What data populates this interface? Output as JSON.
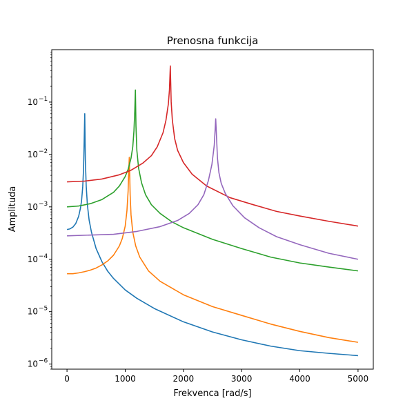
{
  "chart_data": {
    "type": "line",
    "title": "Prenosna funkcija",
    "xlabel": "Frekvenca [rad/s]",
    "ylabel": "Amplituda",
    "xlim": [
      -262,
      5262
    ],
    "ylim": [
      8e-07,
      1.0
    ],
    "yscale": "log",
    "grid": false,
    "xticks": [
      0,
      1000,
      2000,
      3000,
      4000,
      5000
    ],
    "xtick_labels": [
      "0",
      "1000",
      "2000",
      "3000",
      "4000",
      "5000"
    ],
    "yticks": [
      1e-06,
      1e-05,
      0.0001,
      0.001,
      0.01,
      0.1
    ],
    "ytick_base": "10",
    "ytick_exponents": [
      "−6",
      "−5",
      "−4",
      "−3",
      "−2",
      "−1"
    ],
    "series": [
      {
        "color": "#1f77b4",
        "x": [
          0,
          50,
          100,
          150,
          200,
          230,
          250,
          270,
          285,
          295,
          305,
          315,
          330,
          350,
          380,
          420,
          500,
          600,
          700,
          800,
          1000,
          1200,
          1500,
          2000,
          2500,
          3000,
          3500,
          4000,
          4500,
          5000
        ],
        "y": [
          0.00037,
          0.00038,
          0.00041,
          0.00048,
          0.00066,
          0.00093,
          0.0013,
          0.0024,
          0.0055,
          0.018,
          0.06,
          0.008,
          0.0025,
          0.0011,
          0.00056,
          0.00033,
          0.00016,
          9e-05,
          5.9e-05,
          4.3e-05,
          2.6e-05,
          1.8e-05,
          1.15e-05,
          6.4e-06,
          4.1e-06,
          2.9e-06,
          2.2e-06,
          1.8e-06,
          1.6e-06,
          1.45e-06
        ]
      },
      {
        "color": "#ff7f0e",
        "x": [
          0,
          100,
          200,
          300,
          400,
          500,
          600,
          700,
          800,
          900,
          950,
          1000,
          1030,
          1050,
          1060,
          1070,
          1085,
          1100,
          1130,
          1180,
          1250,
          1400,
          1600,
          2000,
          2500,
          3000,
          3500,
          4000,
          4500,
          5000
        ],
        "y": [
          5.3e-05,
          5.3e-05,
          5.5e-05,
          5.8e-05,
          6.2e-05,
          6.8e-05,
          7.8e-05,
          9.3e-05,
          0.00012,
          0.00018,
          0.00025,
          0.00043,
          0.00085,
          0.002,
          0.0045,
          0.0088,
          0.0017,
          0.0007,
          0.00033,
          0.00018,
          0.00011,
          6e-05,
          3.8e-05,
          2.1e-05,
          1.25e-05,
          8.5e-06,
          5.8e-06,
          4.2e-06,
          3.2e-06,
          2.6e-06
        ]
      },
      {
        "color": "#2ca02c",
        "x": [
          0,
          200,
          400,
          600,
          800,
          900,
          1000,
          1050,
          1100,
          1130,
          1150,
          1165,
          1175,
          1185,
          1200,
          1230,
          1280,
          1350,
          1450,
          1600,
          1800,
          2000,
          2500,
          3000,
          3500,
          4000,
          4500,
          5000
        ],
        "y": [
          0.001,
          0.00104,
          0.00115,
          0.00138,
          0.0019,
          0.0025,
          0.0038,
          0.0052,
          0.0085,
          0.014,
          0.028,
          0.07,
          0.17,
          0.035,
          0.012,
          0.0055,
          0.0029,
          0.0017,
          0.0011,
          0.00075,
          0.00052,
          0.0004,
          0.00024,
          0.00016,
          0.00011,
          8.5e-05,
          7.1e-05,
          6e-05
        ]
      },
      {
        "color": "#d62728",
        "x": [
          0,
          300,
          600,
          900,
          1100,
          1300,
          1450,
          1550,
          1650,
          1700,
          1740,
          1760,
          1775,
          1790,
          1810,
          1850,
          1900,
          2000,
          2150,
          2400,
          2800,
          3200,
          3600,
          4000,
          4500,
          5000
        ],
        "y": [
          0.003,
          0.0031,
          0.0034,
          0.0041,
          0.005,
          0.0068,
          0.0095,
          0.014,
          0.026,
          0.045,
          0.09,
          0.17,
          0.49,
          0.1,
          0.045,
          0.02,
          0.012,
          0.007,
          0.0042,
          0.0025,
          0.0015,
          0.0011,
          0.00082,
          0.00067,
          0.00053,
          0.00043
        ]
      },
      {
        "color": "#9467bd",
        "x": [
          0,
          400,
          800,
          1200,
          1600,
          1900,
          2100,
          2250,
          2350,
          2430,
          2490,
          2530,
          2555,
          2570,
          2585,
          2610,
          2650,
          2720,
          2850,
          3050,
          3300,
          3600,
          4000,
          4500,
          5000
        ],
        "y": [
          0.00028,
          0.00029,
          0.0003,
          0.00034,
          0.00042,
          0.00055,
          0.00075,
          0.0011,
          0.0017,
          0.0032,
          0.0065,
          0.015,
          0.048,
          0.02,
          0.0085,
          0.0045,
          0.0028,
          0.0018,
          0.00105,
          0.00062,
          0.0004,
          0.00027,
          0.00019,
          0.00013,
          0.0001
        ]
      }
    ]
  }
}
